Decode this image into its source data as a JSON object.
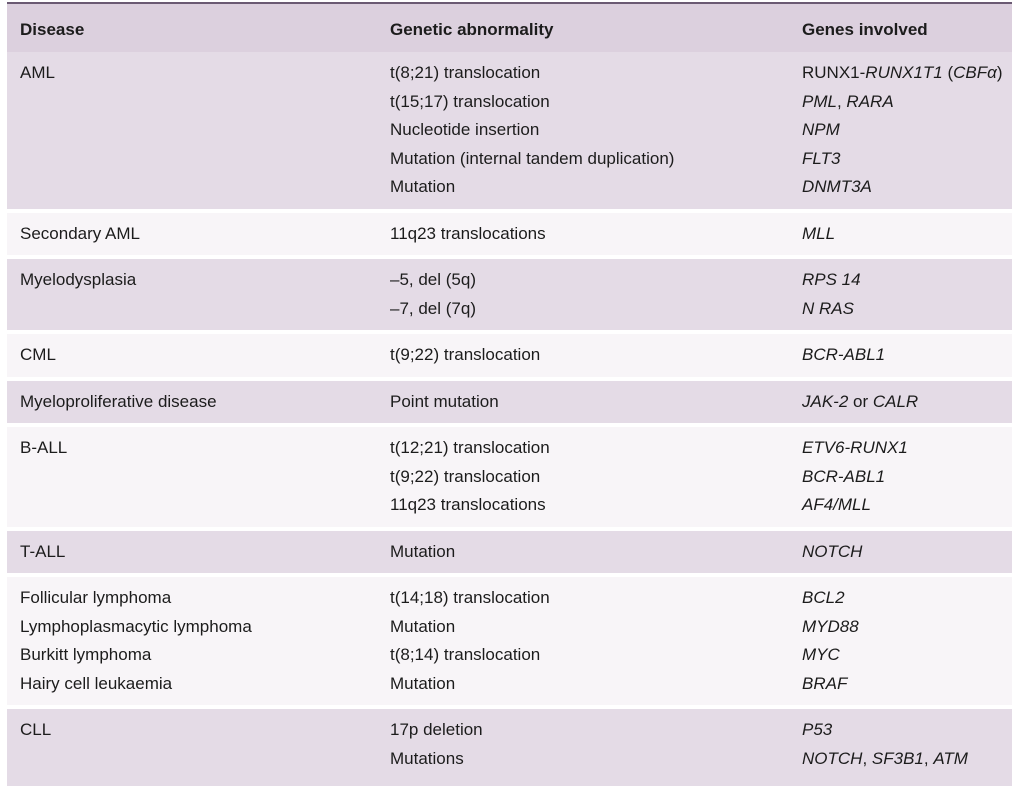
{
  "headers": {
    "disease": "Disease",
    "abnormality": "Genetic abnormality",
    "genes": "Genes involved"
  },
  "rows": [
    {
      "disease": [
        "AML"
      ],
      "abnormality": [
        "t(8;21) translocation",
        "t(15;17) translocation",
        "Nucleotide insertion",
        "Mutation (internal tandem duplication)",
        "Mutation"
      ],
      "genes": [
        [
          {
            "t": "RUNX1-",
            "i": false
          },
          {
            "t": "RUNX1T1",
            "i": true
          },
          {
            "t": " (",
            "i": false
          },
          {
            "t": "CBFα",
            "i": true
          },
          {
            "t": ")",
            "i": false
          }
        ],
        [
          {
            "t": "PML",
            "i": true
          },
          {
            "t": ", ",
            "i": false
          },
          {
            "t": "RARA",
            "i": true
          }
        ],
        [
          {
            "t": "NPM",
            "i": true
          }
        ],
        [
          {
            "t": "FLT3",
            "i": true
          }
        ],
        [
          {
            "t": "DNMT3A",
            "i": true
          }
        ]
      ]
    },
    {
      "disease": [
        "Secondary AML"
      ],
      "abnormality": [
        "11q23 translocations"
      ],
      "genes": [
        [
          {
            "t": "MLL",
            "i": true
          }
        ]
      ]
    },
    {
      "disease": [
        "Myelodysplasia"
      ],
      "abnormality": [
        "–5, del (5q)",
        "–7, del (7q)"
      ],
      "genes": [
        [
          {
            "t": "RPS 14",
            "i": true
          }
        ],
        [
          {
            "t": "N RAS",
            "i": true
          }
        ]
      ]
    },
    {
      "disease": [
        "CML"
      ],
      "abnormality": [
        "t(9;22) translocation"
      ],
      "genes": [
        [
          {
            "t": "BCR-ABL1",
            "i": true
          }
        ]
      ]
    },
    {
      "disease": [
        "Myeloproliferative disease"
      ],
      "abnormality": [
        "Point mutation"
      ],
      "genes": [
        [
          {
            "t": "JAK-2",
            "i": true
          },
          {
            "t": " or ",
            "i": false
          },
          {
            "t": "CALR",
            "i": true
          }
        ]
      ]
    },
    {
      "disease": [
        "B-ALL"
      ],
      "abnormality": [
        "t(12;21) translocation",
        "t(9;22) translocation",
        "11q23 translocations"
      ],
      "genes": [
        [
          {
            "t": "ETV6-RUNX1",
            "i": true
          }
        ],
        [
          {
            "t": "BCR-ABL1",
            "i": true
          }
        ],
        [
          {
            "t": "AF4/MLL",
            "i": true
          }
        ]
      ]
    },
    {
      "disease": [
        "T-ALL"
      ],
      "abnormality": [
        "Mutation"
      ],
      "genes": [
        [
          {
            "t": "NOTCH",
            "i": true
          }
        ]
      ]
    },
    {
      "disease": [
        "Follicular lymphoma",
        "Lymphoplasmacytic lymphoma",
        "Burkitt lymphoma",
        "Hairy cell leukaemia"
      ],
      "abnormality": [
        "t(14;18) translocation",
        "Mutation",
        "t(8;14) translocation",
        "Mutation"
      ],
      "genes": [
        [
          {
            "t": "BCL2",
            "i": true
          }
        ],
        [
          {
            "t": "MYD88",
            "i": true
          }
        ],
        [
          {
            "t": "MYC",
            "i": true
          }
        ],
        [
          {
            "t": "BRAF",
            "i": true
          }
        ]
      ]
    },
    {
      "disease": [
        "CLL"
      ],
      "abnormality": [
        "17p deletion",
        "Mutations"
      ],
      "genes": [
        [
          {
            "t": "P53",
            "i": true
          }
        ],
        [
          {
            "t": "NOTCH",
            "i": true
          },
          {
            "t": ", ",
            "i": false
          },
          {
            "t": "SF3B1",
            "i": true
          },
          {
            "t": ", ",
            "i": false
          },
          {
            "t": "ATM",
            "i": true
          }
        ]
      ]
    }
  ],
  "colors": {
    "shade": "#e4dbe6",
    "plain": "#f8f5f8",
    "header": "#dcd0de",
    "topline": "#6b5a73"
  }
}
